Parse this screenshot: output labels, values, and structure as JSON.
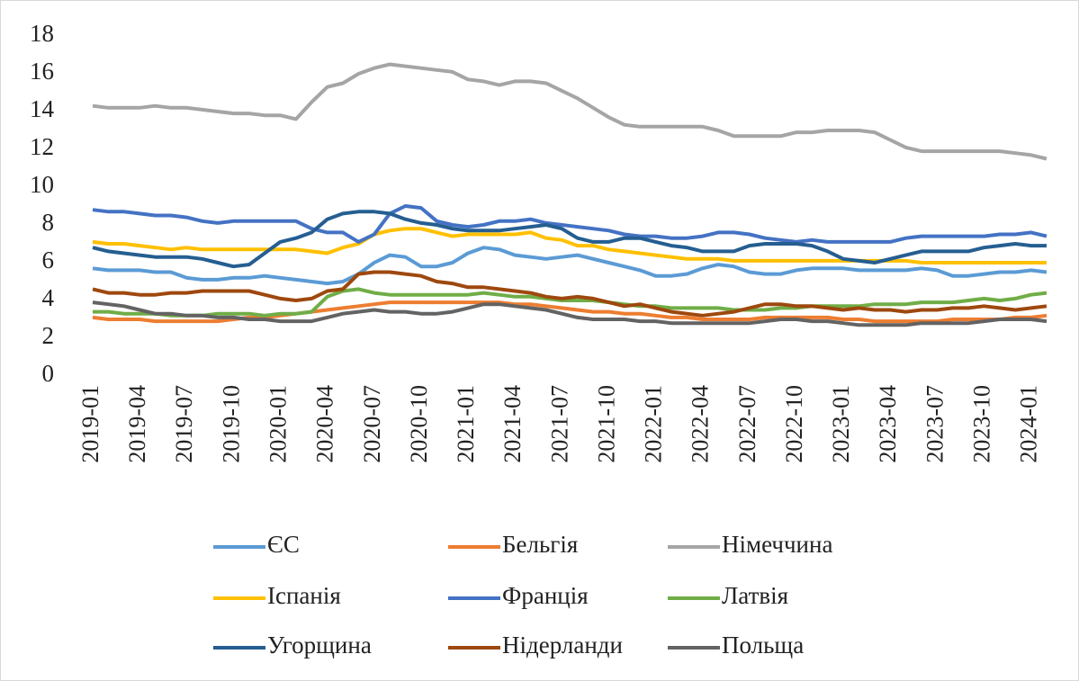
{
  "chart_data": {
    "type": "line",
    "categories": [
      "2019-01",
      null,
      null,
      "2019-04",
      null,
      null,
      "2019-07",
      null,
      null,
      "2019-10",
      null,
      null,
      "2020-01",
      null,
      null,
      "2020-04",
      null,
      null,
      "2020-07",
      null,
      null,
      "2020-10",
      null,
      null,
      "2021-01",
      null,
      null,
      "2021-04",
      null,
      null,
      "2021-07",
      null,
      null,
      "2021-10",
      null,
      null,
      "2022-01",
      null,
      null,
      "2022-04",
      null,
      null,
      "2022-07",
      null,
      null,
      "2022-10",
      null,
      null,
      "2023-01",
      null,
      null,
      "2023-04",
      null,
      null,
      "2023-07",
      null,
      null,
      "2023-10",
      null,
      null,
      "2024-01",
      null
    ],
    "ylim": [
      0,
      18
    ],
    "yticks": [
      0,
      2,
      4,
      6,
      8,
      10,
      12,
      14,
      16,
      18
    ],
    "grid": false,
    "legend": "bottom",
    "series": [
      {
        "name": "ЄС",
        "color": "#5b9bd5",
        "values": [
          5.7,
          5.6,
          5.6,
          5.6,
          5.5,
          5.5,
          5.2,
          5.1,
          5.1,
          5.2,
          5.2,
          5.3,
          5.2,
          5.1,
          5.0,
          4.9,
          5.0,
          5.4,
          6.0,
          6.4,
          6.3,
          5.8,
          5.8,
          6.0,
          6.5,
          6.8,
          6.7,
          6.4,
          6.3,
          6.2,
          6.3,
          6.4,
          6.2,
          6.0,
          5.8,
          5.6,
          5.3,
          5.3,
          5.4,
          5.7,
          5.9,
          5.8,
          5.5,
          5.4,
          5.4,
          5.6,
          5.7,
          5.7,
          5.7,
          5.6,
          5.6,
          5.6,
          5.6,
          5.7,
          5.6,
          5.3,
          5.3,
          5.4,
          5.5,
          5.5,
          5.6,
          5.5
        ]
      },
      {
        "name": "Бельгія",
        "color": "#ed7d31",
        "values": [
          3.1,
          3.0,
          3.0,
          3.0,
          2.9,
          2.9,
          2.9,
          2.9,
          2.9,
          3.0,
          3.1,
          3.1,
          3.2,
          3.3,
          3.4,
          3.5,
          3.6,
          3.7,
          3.8,
          3.9,
          3.9,
          3.9,
          3.9,
          3.9,
          3.9,
          3.9,
          3.9,
          3.8,
          3.8,
          3.7,
          3.6,
          3.5,
          3.4,
          3.4,
          3.3,
          3.3,
          3.2,
          3.1,
          3.1,
          3.0,
          3.0,
          3.0,
          3.0,
          3.1,
          3.1,
          3.1,
          3.1,
          3.1,
          3.0,
          3.0,
          2.9,
          2.9,
          2.9,
          2.9,
          2.9,
          3.0,
          3.0,
          3.0,
          3.0,
          3.1,
          3.1,
          3.2
        ]
      },
      {
        "name": "Німеччина",
        "color": "#a5a5a5",
        "values": [
          14.3,
          14.2,
          14.2,
          14.2,
          14.3,
          14.2,
          14.2,
          14.1,
          14.0,
          13.9,
          13.9,
          13.8,
          13.8,
          13.6,
          14.5,
          15.3,
          15.5,
          16.0,
          16.3,
          16.5,
          16.4,
          16.3,
          16.2,
          16.1,
          15.7,
          15.6,
          15.4,
          15.6,
          15.6,
          15.5,
          15.1,
          14.7,
          14.2,
          13.7,
          13.3,
          13.2,
          13.2,
          13.2,
          13.2,
          13.2,
          13.0,
          12.7,
          12.7,
          12.7,
          12.7,
          12.9,
          12.9,
          13.0,
          13.0,
          13.0,
          12.9,
          12.5,
          12.1,
          11.9,
          11.9,
          11.9,
          11.9,
          11.9,
          11.9,
          11.8,
          11.7,
          11.5
        ]
      },
      {
        "name": "Іспанія",
        "color": "#ffc000",
        "values": [
          7.1,
          7.0,
          7.0,
          6.9,
          6.8,
          6.7,
          6.8,
          6.7,
          6.7,
          6.7,
          6.7,
          6.7,
          6.7,
          6.7,
          6.6,
          6.5,
          6.8,
          7.0,
          7.5,
          7.7,
          7.8,
          7.8,
          7.6,
          7.4,
          7.5,
          7.5,
          7.5,
          7.5,
          7.6,
          7.3,
          7.2,
          6.9,
          6.9,
          6.7,
          6.6,
          6.5,
          6.4,
          6.3,
          6.2,
          6.2,
          6.2,
          6.1,
          6.1,
          6.1,
          6.1,
          6.1,
          6.1,
          6.1,
          6.1,
          6.1,
          6.1,
          6.1,
          6.1,
          6.0,
          6.0,
          6.0,
          6.0,
          6.0,
          6.0,
          6.0,
          6.0,
          6.0
        ]
      },
      {
        "name": "Франція",
        "color": "#4472c4",
        "values": [
          8.8,
          8.7,
          8.7,
          8.6,
          8.5,
          8.5,
          8.4,
          8.2,
          8.1,
          8.2,
          8.2,
          8.2,
          8.2,
          8.2,
          7.8,
          7.6,
          7.6,
          7.1,
          7.5,
          8.6,
          9.0,
          8.9,
          8.2,
          8.0,
          7.9,
          8.0,
          8.2,
          8.2,
          8.3,
          8.1,
          8.0,
          7.9,
          7.8,
          7.7,
          7.5,
          7.4,
          7.4,
          7.3,
          7.3,
          7.4,
          7.6,
          7.6,
          7.5,
          7.3,
          7.2,
          7.1,
          7.2,
          7.1,
          7.1,
          7.1,
          7.1,
          7.1,
          7.3,
          7.4,
          7.4,
          7.4,
          7.4,
          7.4,
          7.5,
          7.5,
          7.6,
          7.4
        ]
      },
      {
        "name": "Латвія",
        "color": "#70ad47",
        "values": [
          3.4,
          3.4,
          3.3,
          3.3,
          3.3,
          3.2,
          3.2,
          3.2,
          3.3,
          3.3,
          3.3,
          3.2,
          3.3,
          3.3,
          3.4,
          4.2,
          4.5,
          4.6,
          4.4,
          4.3,
          4.3,
          4.3,
          4.3,
          4.3,
          4.3,
          4.4,
          4.3,
          4.2,
          4.2,
          4.1,
          4.0,
          4.0,
          4.0,
          3.9,
          3.8,
          3.7,
          3.7,
          3.6,
          3.6,
          3.6,
          3.6,
          3.5,
          3.5,
          3.5,
          3.6,
          3.6,
          3.7,
          3.7,
          3.7,
          3.7,
          3.8,
          3.8,
          3.8,
          3.9,
          3.9,
          3.9,
          4.0,
          4.1,
          4.0,
          4.1,
          4.3,
          4.4
        ]
      },
      {
        "name": "Угорщина",
        "color": "#255e91",
        "values": [
          6.8,
          6.6,
          6.5,
          6.4,
          6.3,
          6.3,
          6.3,
          6.2,
          6.0,
          5.8,
          5.9,
          6.5,
          7.1,
          7.3,
          7.6,
          8.3,
          8.6,
          8.7,
          8.7,
          8.6,
          8.3,
          8.1,
          8.0,
          7.8,
          7.7,
          7.7,
          7.7,
          7.8,
          7.9,
          8.0,
          7.8,
          7.3,
          7.1,
          7.1,
          7.3,
          7.3,
          7.1,
          6.9,
          6.8,
          6.6,
          6.6,
          6.6,
          6.9,
          7.0,
          7.0,
          7.0,
          6.9,
          6.6,
          6.2,
          6.1,
          6.0,
          6.2,
          6.4,
          6.6,
          6.6,
          6.6,
          6.6,
          6.8,
          6.9,
          7.0,
          6.9,
          6.9
        ]
      },
      {
        "name": "Нідерланди",
        "color": "#9e480e",
        "values": [
          4.6,
          4.4,
          4.4,
          4.3,
          4.3,
          4.4,
          4.4,
          4.5,
          4.5,
          4.5,
          4.5,
          4.3,
          4.1,
          4.0,
          4.1,
          4.5,
          4.6,
          5.4,
          5.5,
          5.5,
          5.4,
          5.3,
          5.0,
          4.9,
          4.7,
          4.7,
          4.6,
          4.5,
          4.4,
          4.2,
          4.1,
          4.2,
          4.1,
          3.9,
          3.7,
          3.8,
          3.6,
          3.4,
          3.3,
          3.2,
          3.3,
          3.4,
          3.6,
          3.8,
          3.8,
          3.7,
          3.7,
          3.6,
          3.5,
          3.6,
          3.5,
          3.5,
          3.4,
          3.5,
          3.5,
          3.6,
          3.6,
          3.7,
          3.6,
          3.5,
          3.6,
          3.7
        ]
      },
      {
        "name": "Польща",
        "color": "#636363",
        "values": [
          3.9,
          3.8,
          3.7,
          3.5,
          3.3,
          3.3,
          3.2,
          3.2,
          3.1,
          3.1,
          3.0,
          3.0,
          2.9,
          2.9,
          2.9,
          3.1,
          3.3,
          3.4,
          3.5,
          3.4,
          3.4,
          3.3,
          3.3,
          3.4,
          3.6,
          3.8,
          3.8,
          3.7,
          3.6,
          3.5,
          3.3,
          3.1,
          3.0,
          3.0,
          3.0,
          2.9,
          2.9,
          2.8,
          2.8,
          2.8,
          2.8,
          2.8,
          2.8,
          2.9,
          3.0,
          3.0,
          2.9,
          2.9,
          2.8,
          2.7,
          2.7,
          2.7,
          2.7,
          2.8,
          2.8,
          2.8,
          2.8,
          2.9,
          3.0,
          3.0,
          3.0,
          2.9
        ]
      }
    ]
  }
}
